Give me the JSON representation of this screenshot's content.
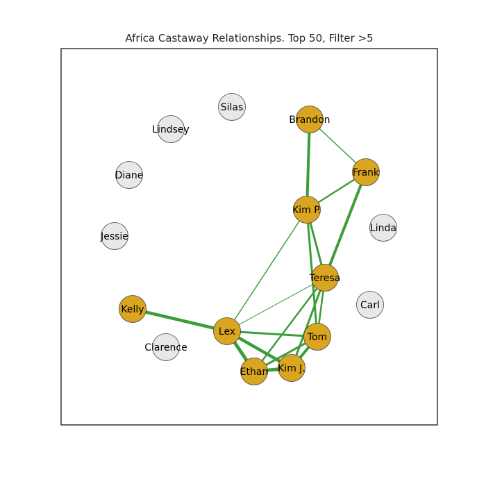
{
  "title": "Africa Castaway Relationships. Top 50, Filter >5",
  "colors": {
    "highlight_node": "#DAA520",
    "plain_node": "#E8E8E8",
    "node_stroke": "#444444",
    "edge": "#3A9E3A",
    "frame": "#333333",
    "label": "#000000"
  },
  "nodes": [
    {
      "id": "silas",
      "label": "Silas",
      "highlighted": false
    },
    {
      "id": "lindsey",
      "label": "Lindsey",
      "highlighted": false
    },
    {
      "id": "diane",
      "label": "Diane",
      "highlighted": false
    },
    {
      "id": "jessie",
      "label": "Jessie",
      "highlighted": false
    },
    {
      "id": "clarence",
      "label": "Clarence",
      "highlighted": false
    },
    {
      "id": "linda",
      "label": "Linda",
      "highlighted": false
    },
    {
      "id": "carl",
      "label": "Carl",
      "highlighted": false
    },
    {
      "id": "brandon",
      "label": "Brandon",
      "highlighted": true
    },
    {
      "id": "frank",
      "label": "Frank",
      "highlighted": true
    },
    {
      "id": "kimp",
      "label": "Kim P.",
      "highlighted": true
    },
    {
      "id": "teresa",
      "label": "Teresa",
      "highlighted": true
    },
    {
      "id": "kelly",
      "label": "Kelly",
      "highlighted": true
    },
    {
      "id": "lex",
      "label": "Lex",
      "highlighted": true
    },
    {
      "id": "tom",
      "label": "Tom",
      "highlighted": true
    },
    {
      "id": "kimj",
      "label": "Kim J.",
      "highlighted": true
    },
    {
      "id": "ethan",
      "label": "Ethan",
      "highlighted": true
    }
  ],
  "edges": [
    {
      "source": "brandon",
      "target": "kimp",
      "weight": 4
    },
    {
      "source": "brandon",
      "target": "frank",
      "weight": 1.5
    },
    {
      "source": "frank",
      "target": "kimp",
      "weight": 2.5
    },
    {
      "source": "frank",
      "target": "teresa",
      "weight": 4
    },
    {
      "source": "kimp",
      "target": "teresa",
      "weight": 3
    },
    {
      "source": "kimp",
      "target": "tom",
      "weight": 3
    },
    {
      "source": "kimp",
      "target": "lex",
      "weight": 1.5
    },
    {
      "source": "teresa",
      "target": "lex",
      "weight": 1
    },
    {
      "source": "teresa",
      "target": "tom",
      "weight": 2.5
    },
    {
      "source": "teresa",
      "target": "ethan",
      "weight": 2.5
    },
    {
      "source": "teresa",
      "target": "kimj",
      "weight": 3
    },
    {
      "source": "kelly",
      "target": "lex",
      "weight": 4.5
    },
    {
      "source": "lex",
      "target": "tom",
      "weight": 3
    },
    {
      "source": "lex",
      "target": "ethan",
      "weight": 5
    },
    {
      "source": "lex",
      "target": "kimj",
      "weight": 4.5
    },
    {
      "source": "tom",
      "target": "kimj",
      "weight": 4
    },
    {
      "source": "tom",
      "target": "ethan",
      "weight": 3
    },
    {
      "source": "ethan",
      "target": "kimj",
      "weight": 5
    }
  ]
}
